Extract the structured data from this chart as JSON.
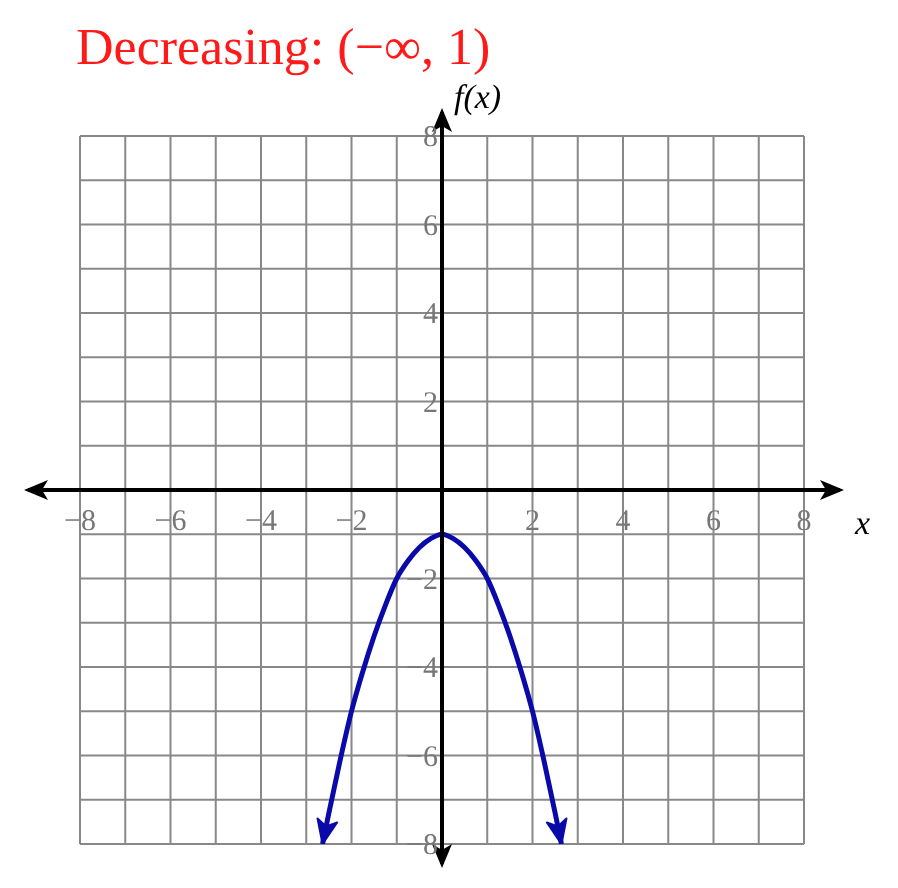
{
  "chart_data": {
    "type": "line",
    "title": "Decreasing: (−∞, 1)",
    "xlabel": "x",
    "ylabel": "f(x)",
    "xlim": [
      -8,
      8
    ],
    "ylim": [
      -8,
      8
    ],
    "xticks": [
      -8,
      {
        "value": -7,
        "label": null
      },
      -6,
      {
        "value": -5,
        "label": null
      },
      -4,
      {
        "value": -3,
        "label": null
      },
      -2,
      {
        "value": -1,
        "label": null
      },
      {
        "value": 0,
        "label": null
      },
      {
        "value": 1,
        "label": null
      },
      2,
      {
        "value": 3,
        "label": null
      },
      4,
      {
        "value": 5,
        "label": null
      },
      6,
      {
        "value": 7,
        "label": null
      },
      8
    ],
    "yticks": [
      -8,
      {
        "value": -7,
        "label": null
      },
      -6,
      {
        "value": -5,
        "label": null
      },
      -4,
      {
        "value": -3,
        "label": null
      },
      -2,
      {
        "value": -1,
        "label": null
      },
      {
        "value": 0,
        "label": null
      },
      {
        "value": 1,
        "label": null
      },
      2,
      {
        "value": 3,
        "label": null
      },
      4,
      {
        "value": 5,
        "label": null
      },
      6,
      {
        "value": 7,
        "label": null
      },
      8
    ],
    "grid": true,
    "series": [
      {
        "color": "#0a0aa8",
        "x": [
          -2.64,
          -2.5,
          -2.25,
          -2,
          -1.75,
          -1.5,
          -1.25,
          -1,
          -0.75,
          -0.5,
          -0.25,
          0,
          0.25,
          0.5,
          0.75,
          1,
          1.25,
          1.5,
          1.75,
          2,
          2.25,
          2.5,
          2.64
        ],
        "values": [
          -8.0,
          -7.3,
          -6.1,
          -5,
          -4.1,
          -3.3,
          -2.6,
          -2,
          -1.6,
          -1.3,
          -1.1,
          -1,
          -1.1,
          -1.3,
          -1.6,
          -2,
          -2.6,
          -3.3,
          -4.1,
          -5,
          -6.1,
          -7.3,
          -8.0
        ]
      }
    ]
  }
}
